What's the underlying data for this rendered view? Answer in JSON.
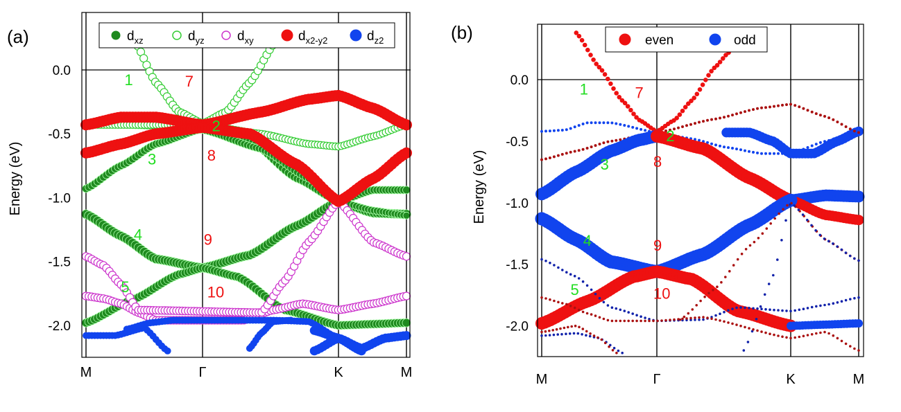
{
  "colors": {
    "dxz": "#1f8a1f",
    "dyz_edge": "#33cc33",
    "dxy_edge": "#cc33cc",
    "dx2y2": "#ee1111",
    "dz2": "#1144ee",
    "even": "#ee1111",
    "odd": "#1144ee",
    "label_green": "#22dd22",
    "label_red": "#ee1111"
  },
  "chart_data": [
    {
      "type": "scatter",
      "panel_label": "(a)",
      "ylabel": "Energy (eV)",
      "ylim": [
        -2.25,
        0.45
      ],
      "yticks": [
        "0.0",
        "-0.5",
        "-1.0",
        "-1.5",
        "-2.0"
      ],
      "ytick_values": [
        0.0,
        -0.5,
        -1.0,
        -1.5,
        -2.0
      ],
      "kpoints": [
        {
          "label": "M",
          "k": 0
        },
        {
          "label": "Γ",
          "k": 1
        },
        {
          "label": "K",
          "k": 2.155
        },
        {
          "label": "M",
          "k": 2.73
        }
      ],
      "legend": [
        {
          "key": "dxz",
          "base": "d",
          "sub": "xz"
        },
        {
          "key": "dyz",
          "base": "d",
          "sub": "yz"
        },
        {
          "key": "dxy",
          "base": "d",
          "sub": "xy"
        },
        {
          "key": "dx2y2",
          "base": "d",
          "sub": "x2-y2"
        },
        {
          "key": "dz2",
          "base": "d",
          "sub": "z2"
        }
      ],
      "band_labels": [
        {
          "text": "1",
          "k": 0.33,
          "e": -0.12,
          "color": "green"
        },
        {
          "text": "7",
          "k": 0.85,
          "e": -0.13,
          "color": "red"
        },
        {
          "text": "2",
          "k": 1.08,
          "e": -0.48,
          "color": "green"
        },
        {
          "text": "3",
          "k": 0.53,
          "e": -0.74,
          "color": "green"
        },
        {
          "text": "8",
          "k": 1.04,
          "e": -0.71,
          "color": "red"
        },
        {
          "text": "4",
          "k": 0.41,
          "e": -1.33,
          "color": "green"
        },
        {
          "text": "9",
          "k": 1.01,
          "e": -1.37,
          "color": "red"
        },
        {
          "text": "5",
          "k": 0.3,
          "e": -1.74,
          "color": "green"
        },
        {
          "text": "10",
          "k": 1.04,
          "e": -1.78,
          "color": "red"
        }
      ],
      "series": [
        {
          "name": "dxz",
          "style": "filled",
          "size": 5.5,
          "k": [
            0,
            0.3,
            0.6,
            1,
            1.4,
            1.8,
            2.155,
            2.45,
            2.73
          ],
          "e": [
            -0.93,
            -0.75,
            -0.58,
            -0.46,
            -0.55,
            -0.85,
            -1.03,
            -0.94,
            -0.94
          ]
        },
        {
          "name": "dxz",
          "style": "filled",
          "size": 6.5,
          "k": [
            0,
            0.3,
            0.6,
            1,
            1.4,
            1.8,
            2.155,
            2.45,
            2.73
          ],
          "e": [
            -1.13,
            -1.3,
            -1.48,
            -1.55,
            -1.45,
            -1.22,
            -1.03,
            -1.12,
            -1.13
          ]
        },
        {
          "name": "dxz",
          "style": "filled",
          "size": 6,
          "k": [
            0,
            0.4,
            0.8,
            1,
            1.3,
            1.7,
            2.155,
            2.45,
            2.73
          ],
          "e": [
            -1.98,
            -1.8,
            -1.6,
            -1.55,
            -1.62,
            -1.88,
            -2.0,
            -1.99,
            -1.98
          ]
        },
        {
          "name": "dxz",
          "style": "filled",
          "size": 5,
          "k": [
            0,
            0.3,
            0.6,
            1,
            1.5,
            1.9,
            2.155,
            2.45,
            2.73
          ],
          "e": [
            -0.43,
            -0.43,
            -0.44,
            -0.47,
            -0.62,
            -0.85,
            -1.03,
            -1.1,
            -1.14
          ]
        },
        {
          "name": "dyz",
          "style": "open",
          "size": 5.5,
          "k": [
            0.42,
            0.6,
            0.8,
            1,
            1.2,
            1.4,
            1.62
          ],
          "e": [
            0.22,
            -0.1,
            -0.33,
            -0.42,
            -0.33,
            -0.1,
            0.22
          ]
        },
        {
          "name": "dyz",
          "style": "open",
          "size": 5,
          "k": [
            0,
            0.4,
            0.8,
            1,
            1.5,
            1.9,
            2.155,
            2.45,
            2.73
          ],
          "e": [
            -0.43,
            -0.43,
            -0.43,
            -0.43,
            -0.5,
            -0.58,
            -0.6,
            -0.52,
            -0.43
          ]
        },
        {
          "name": "dxy",
          "style": "open",
          "size": 5.5,
          "k": [
            0,
            0.15,
            0.3,
            0.45,
            0.6,
            1,
            1.35,
            1.6,
            1.85,
            2.155,
            2.45,
            2.73
          ],
          "e": [
            -1.77,
            -1.79,
            -1.83,
            -1.9,
            -1.96,
            -1.96,
            -1.96,
            -1.88,
            -1.83,
            -1.88,
            -1.83,
            -1.77
          ]
        },
        {
          "name": "dxy",
          "style": "open",
          "size": 5.5,
          "k": [
            0,
            0.15,
            0.3,
            0.45,
            1.5,
            1.7,
            1.9,
            2.155,
            2.45,
            2.73
          ],
          "e": [
            -1.46,
            -1.53,
            -1.68,
            -1.88,
            -1.9,
            -1.65,
            -1.35,
            -1.03,
            -1.35,
            -1.46
          ]
        },
        {
          "name": "dx2y2",
          "style": "filled",
          "size": 7.5,
          "k": [
            0,
            0.3,
            0.6,
            1,
            1.5,
            1.9,
            2.155,
            2.45,
            2.73
          ],
          "e": [
            -0.43,
            -0.37,
            -0.37,
            -0.43,
            -0.33,
            -0.23,
            -0.2,
            -0.3,
            -0.43
          ]
        },
        {
          "name": "dx2y2",
          "style": "filled",
          "size": 7.5,
          "k": [
            0,
            0.3,
            0.6,
            1,
            1.4,
            1.8,
            2.155,
            2.45,
            2.73
          ],
          "e": [
            -0.65,
            -0.58,
            -0.5,
            -0.45,
            -0.5,
            -0.74,
            -1.03,
            -0.85,
            -0.65
          ]
        },
        {
          "name": "dz2",
          "style": "filled",
          "size": 4.5,
          "k": [
            0,
            0.25,
            0.5,
            0.7
          ],
          "e": [
            -2.08,
            -2.08,
            -2.02,
            -2.2
          ]
        },
        {
          "name": "dz2",
          "style": "filled",
          "size": 4.5,
          "k": [
            0.35,
            0.55,
            0.75,
            1,
            1.3,
            1.6,
            1.9,
            2.155
          ],
          "e": [
            -2.03,
            -1.98,
            -1.96,
            -1.96,
            -1.96,
            -1.96,
            -1.97,
            -2.1
          ]
        },
        {
          "name": "dz2",
          "style": "filled",
          "size": 4.5,
          "k": [
            1.4,
            1.5,
            1.6,
            1.75
          ],
          "e": [
            -2.18,
            -2.06,
            -1.97,
            -1.96
          ]
        },
        {
          "name": "dz2",
          "style": "filled",
          "size": 6,
          "k": [
            1.95,
            2.155,
            2.35,
            2.55,
            2.73
          ],
          "e": [
            -2.2,
            -2.1,
            -2.18,
            -2.1,
            -2.08
          ]
        },
        {
          "name": "dz2",
          "style": "filled",
          "size": 6,
          "k": [
            1.95,
            2.155,
            2.35
          ],
          "e": [
            -2.04,
            -2.1,
            -2.2
          ]
        }
      ]
    },
    {
      "type": "scatter",
      "panel_label": "(b)",
      "ylabel": "Energy (eV)",
      "ylim": [
        -2.25,
        0.45
      ],
      "yticks": [
        "0.0",
        "-0.5",
        "-1.0",
        "-1.5",
        "-2.0"
      ],
      "ytick_values": [
        0.0,
        -0.5,
        -1.0,
        -1.5,
        -2.0
      ],
      "kpoints": [
        {
          "label": "M",
          "k": 0
        },
        {
          "label": "Γ",
          "k": 1
        },
        {
          "label": "K",
          "k": 2.155
        },
        {
          "label": "M",
          "k": 2.73
        }
      ],
      "legend": [
        {
          "key": "even",
          "text": "even"
        },
        {
          "key": "odd",
          "text": "odd"
        }
      ],
      "band_labels": [
        {
          "text": "1",
          "k": 0.33,
          "e": -0.12,
          "color": "green"
        },
        {
          "text": "7",
          "k": 0.81,
          "e": -0.15,
          "color": "red"
        },
        {
          "text": "2",
          "k": 1.08,
          "e": -0.5,
          "color": "green"
        },
        {
          "text": "3",
          "k": 0.51,
          "e": -0.73,
          "color": "green"
        },
        {
          "text": "8",
          "k": 0.97,
          "e": -0.71,
          "color": "red"
        },
        {
          "text": "4",
          "k": 0.36,
          "e": -1.35,
          "color": "green"
        },
        {
          "text": "9",
          "k": 0.97,
          "e": -1.39,
          "color": "red"
        },
        {
          "text": "5",
          "k": 0.25,
          "e": -1.75,
          "color": "green"
        },
        {
          "text": "10",
          "k": 0.97,
          "e": -1.78,
          "color": "red"
        }
      ],
      "series": [
        {
          "name": "even",
          "size": 2.8,
          "k": [
            0.3,
            0.5,
            0.7,
            0.85,
            1,
            1.15,
            1.3,
            1.5,
            1.62
          ],
          "e": [
            0.38,
            0.1,
            -0.17,
            -0.33,
            -0.42,
            -0.33,
            -0.17,
            0.1,
            0.22
          ]
        },
        {
          "name": "odd",
          "size": 1.5,
          "k": [
            0,
            0.2,
            0.4,
            0.6,
            1,
            1.3,
            1.6,
            1.9,
            2.155,
            2.45,
            2.73
          ],
          "e": [
            -0.42,
            -0.41,
            -0.35,
            -0.35,
            -0.43,
            -0.48,
            -0.55,
            -0.6,
            -0.6,
            -0.5,
            -0.43
          ]
        },
        {
          "name": "odd",
          "size": 6.5,
          "k": [
            1.6,
            1.8,
            2.0,
            2.155,
            2.35,
            2.55,
            2.73
          ],
          "e": [
            -0.43,
            -0.43,
            -0.5,
            -0.6,
            -0.6,
            -0.5,
            -0.42
          ]
        },
        {
          "name": "red-thin",
          "size": 1.5,
          "k": [
            0,
            0.3,
            0.6,
            1,
            1.5,
            1.9,
            2.155,
            2.45,
            2.73
          ],
          "e": [
            -0.65,
            -0.58,
            -0.5,
            -0.43,
            -0.32,
            -0.23,
            -0.2,
            -0.3,
            -0.43
          ]
        },
        {
          "name": "odd",
          "size": 8.5,
          "k": [
            0,
            0.3,
            0.6,
            0.85,
            1
          ],
          "e": [
            -0.93,
            -0.75,
            -0.58,
            -0.49,
            -0.46
          ]
        },
        {
          "name": "even",
          "size": 8.5,
          "k": [
            1,
            1.4,
            1.8,
            2.155
          ],
          "e": [
            -0.46,
            -0.56,
            -0.8,
            -0.98
          ]
        },
        {
          "name": "odd",
          "size": 8,
          "k": [
            2.155,
            2.45,
            2.73
          ],
          "e": [
            -0.98,
            -0.94,
            -0.95
          ]
        },
        {
          "name": "even",
          "size": 7,
          "k": [
            2.155,
            2.45,
            2.73
          ],
          "e": [
            -0.98,
            -1.1,
            -1.14
          ]
        },
        {
          "name": "odd",
          "size": 9,
          "k": [
            0,
            0.3,
            0.6,
            1,
            1.4,
            1.8,
            2.155
          ],
          "e": [
            -1.13,
            -1.3,
            -1.48,
            -1.56,
            -1.42,
            -1.18,
            -0.98
          ]
        },
        {
          "name": "even",
          "size": 8.5,
          "k": [
            0,
            0.4,
            0.8,
            1,
            1.3,
            1.7,
            2.155
          ],
          "e": [
            -1.98,
            -1.8,
            -1.6,
            -1.56,
            -1.62,
            -1.88,
            -2.0
          ]
        },
        {
          "name": "odd",
          "size": 5.5,
          "k": [
            2.155,
            2.45,
            2.73
          ],
          "e": [
            -2.0,
            -1.99,
            -1.98
          ]
        },
        {
          "name": "red-thin",
          "size": 1.3,
          "k": [
            1.2,
            1.5,
            1.8,
            2.155,
            2.45,
            2.73
          ],
          "e": [
            -1.95,
            -1.7,
            -1.35,
            -1.0,
            -1.3,
            -1.47
          ]
        },
        {
          "name": "odd-thin",
          "size": 1.3,
          "k": [
            1.75,
            2.0,
            2.155,
            2.45,
            2.73
          ],
          "e": [
            -2.2,
            -1.6,
            -1.0,
            -1.3,
            -1.47
          ]
        },
        {
          "name": "odd-thin",
          "size": 1.3,
          "k": [
            0,
            0.3,
            0.6,
            1,
            1.4,
            1.7,
            2.155,
            2.45,
            2.73
          ],
          "e": [
            -1.46,
            -1.6,
            -1.85,
            -1.96,
            -1.95,
            -1.85,
            -1.88,
            -1.83,
            -1.77
          ]
        },
        {
          "name": "red-thin",
          "size": 1.3,
          "k": [
            0,
            0.2,
            0.4,
            0.6,
            1,
            1.4,
            2.155,
            2.45,
            2.73
          ],
          "e": [
            -1.77,
            -1.82,
            -1.9,
            -1.96,
            -1.96,
            -1.93,
            -2.1,
            -2.05,
            -2.2
          ]
        },
        {
          "name": "odd-thin",
          "size": 1.3,
          "k": [
            0,
            0.3,
            0.5,
            0.7
          ],
          "e": [
            -2.08,
            -2.06,
            -2.1,
            -2.22
          ]
        },
        {
          "name": "red-thin",
          "size": 1.3,
          "k": [
            0,
            0.3,
            0.5,
            0.65
          ],
          "e": [
            -2.05,
            -2.0,
            -2.1,
            -2.22
          ]
        }
      ]
    }
  ]
}
